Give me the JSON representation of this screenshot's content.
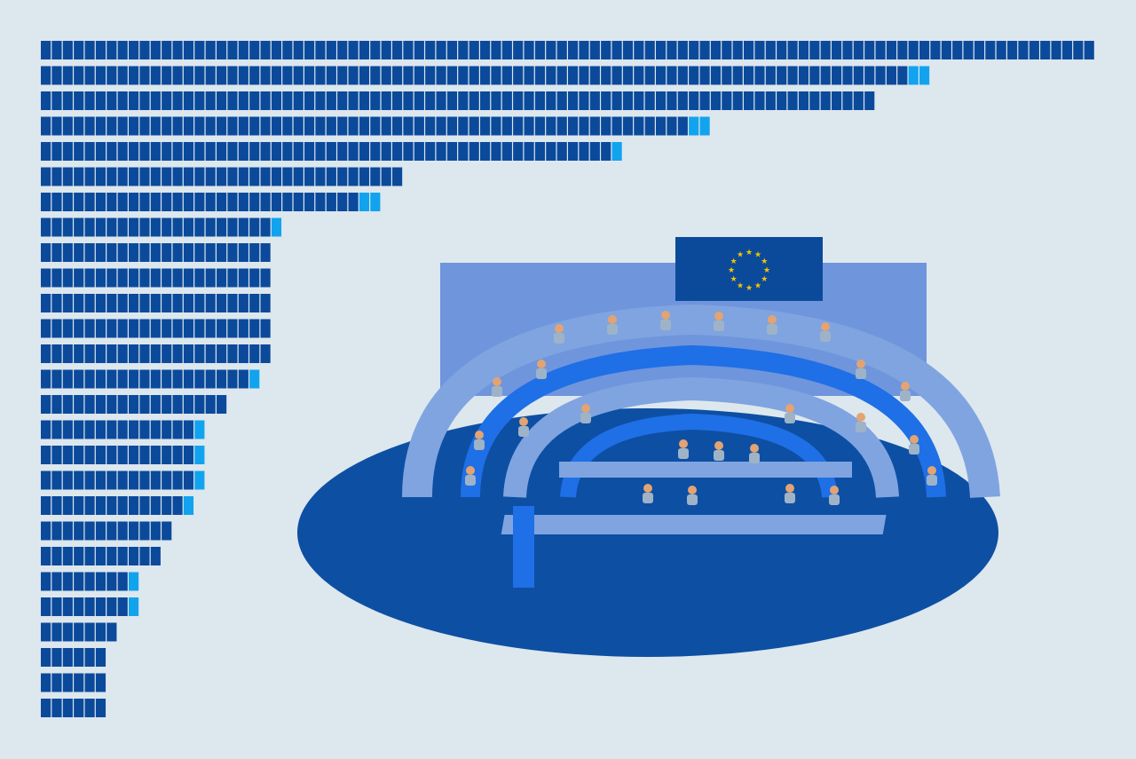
{
  "colors": {
    "background": "#dde7ee",
    "existing_seats": "#0b4a9b",
    "added_seats": "#12a3ee",
    "floor": "#0d4fa3",
    "desk": "#7fa4e0",
    "chair": "#1f6fe6"
  },
  "chart_data": {
    "type": "bar",
    "orientation": "horizontal",
    "stacked": true,
    "segmented_units": true,
    "series": [
      {
        "color": "#0b4a9b",
        "values": [
          96,
          79,
          76,
          59,
          52,
          33,
          29,
          21,
          21,
          21,
          21,
          21,
          21,
          19,
          17,
          14,
          14,
          14,
          13,
          12,
          11,
          8,
          8,
          7,
          6,
          6,
          6
        ]
      },
      {
        "color": "#12a3ee",
        "values": [
          0,
          2,
          0,
          2,
          1,
          0,
          2,
          1,
          0,
          0,
          0,
          0,
          0,
          1,
          0,
          1,
          1,
          1,
          1,
          0,
          0,
          1,
          1,
          0,
          0,
          0,
          0
        ]
      }
    ],
    "xlim": [
      0,
      96
    ],
    "grid": false,
    "axes_visible": false,
    "legend": "none"
  },
  "illustration": {
    "subject": "parliament-hemicycle",
    "flag": "eu-flag",
    "stars": 12
  }
}
